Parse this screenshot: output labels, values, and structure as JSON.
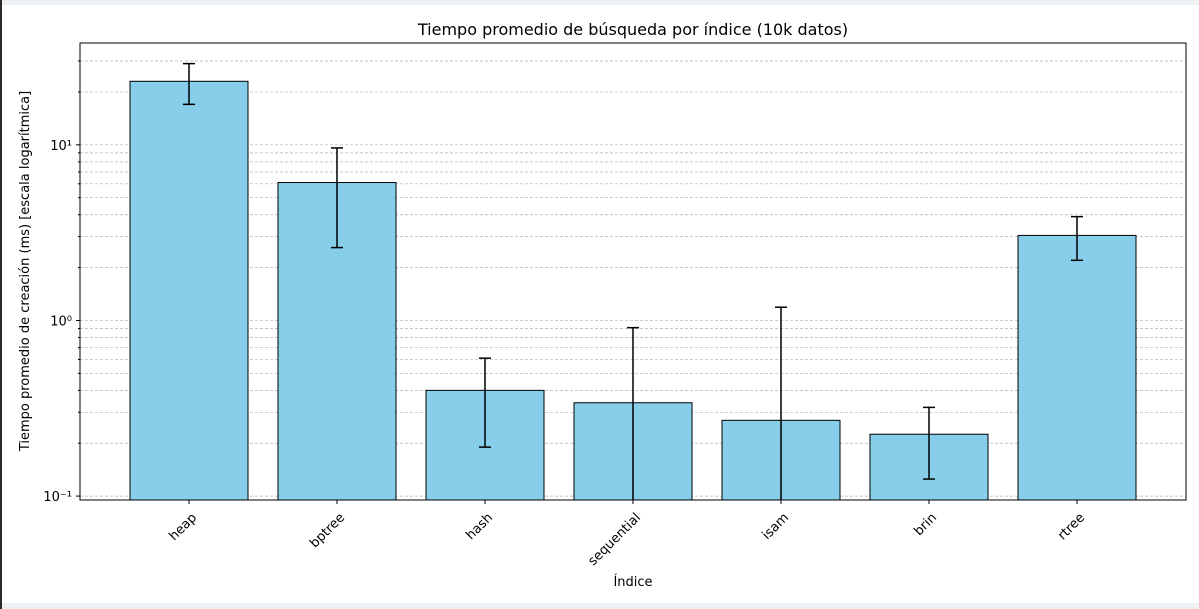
{
  "chart_data": {
    "type": "bar",
    "title": "Tiempo promedio de búsqueda por índice (10k datos)",
    "xlabel": "Índice",
    "ylabel": "Tiempo promedio de creación (ms) [escala logarítmica]",
    "yscale": "log",
    "ylim": [
      0.095,
      38
    ],
    "grid": "y, major and minor, dashed",
    "categories": [
      "heap",
      "bptree",
      "hash",
      "sequential",
      "isam",
      "brin",
      "rtree"
    ],
    "values": [
      23.0,
      6.1,
      0.4,
      0.34,
      0.27,
      0.225,
      3.05
    ],
    "error_low": [
      17.0,
      2.6,
      0.19,
      0.09,
      0.09,
      0.125,
      2.2
    ],
    "error_high": [
      29.0,
      9.6,
      0.61,
      0.91,
      1.19,
      0.32,
      3.9
    ],
    "y_ticks": [
      {
        "value": 0.1,
        "label": "10⁻¹"
      },
      {
        "value": 1,
        "label": "10⁰"
      },
      {
        "value": 10,
        "label": "10¹"
      }
    ],
    "bar_color": "#87ceeb",
    "bar_edge_color": "#000000",
    "error_bar_color": "#000000"
  }
}
